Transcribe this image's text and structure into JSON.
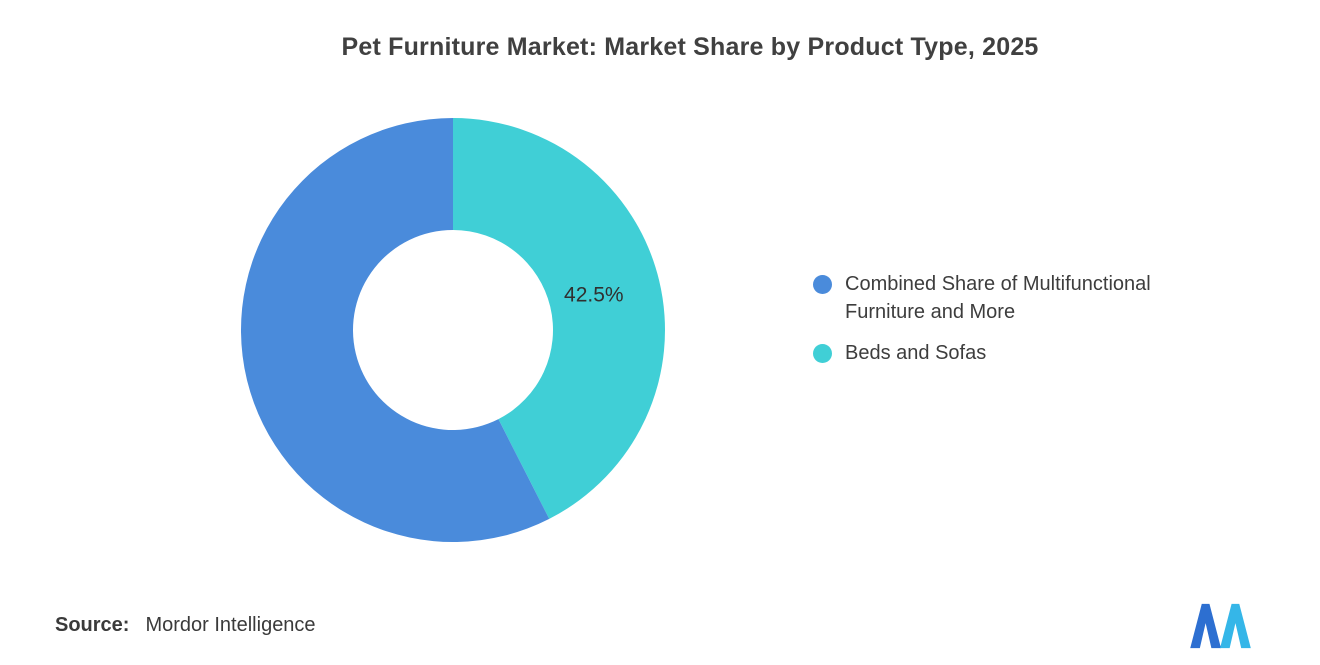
{
  "chart_data": {
    "type": "pie",
    "title": "Pet Furniture Market: Market Share by Product Type, 2025",
    "donut": true,
    "inner_radius_ratio": 0.47,
    "start": "top",
    "direction": "clockwise",
    "legend_position": "right",
    "series": [
      {
        "name": "Combined Share of Multifunctional Furniture and More",
        "value": 57.5,
        "color": "#4A8BDB",
        "data_label": ""
      },
      {
        "name": "Beds and Sofas",
        "value": 42.5,
        "color": "#40CFD6",
        "data_label": "42.5%"
      }
    ],
    "label_color": "#303030"
  },
  "legend": {
    "items": [
      {
        "label": "Combined Share of Multifunctional Furniture and More",
        "color": "#4A8BDB"
      },
      {
        "label": "Beds and Sofas",
        "color": "#40CFD6"
      }
    ]
  },
  "source": {
    "prefix": "Source:",
    "name": "Mordor Intelligence"
  },
  "logo": {
    "alt": "Mordor Intelligence logo",
    "color_left": "#2D6FD1",
    "color_right": "#35B6E8"
  }
}
